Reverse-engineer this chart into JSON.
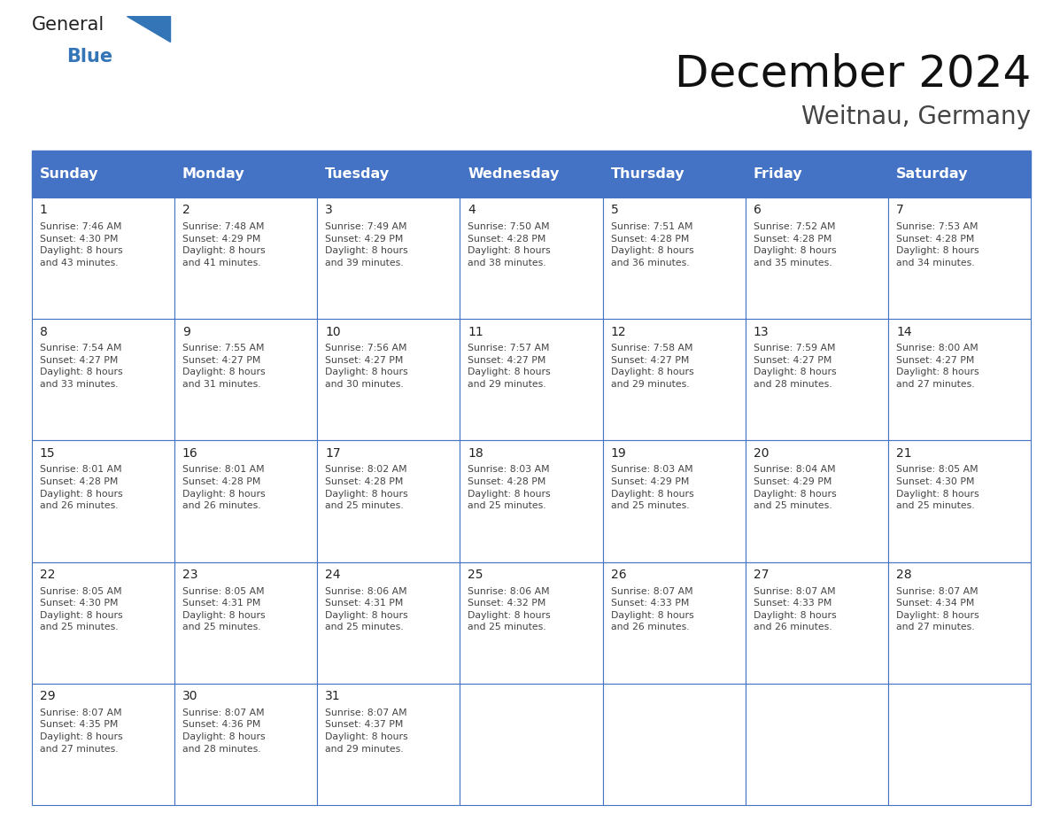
{
  "title": "December 2024",
  "subtitle": "Weitnau, Germany",
  "header_bg": "#4472C4",
  "header_text_color": "#FFFFFF",
  "cell_bg": "#FFFFFF",
  "cell_text_color": "#333333",
  "grid_color": "#4472C4",
  "days_of_week": [
    "Sunday",
    "Monday",
    "Tuesday",
    "Wednesday",
    "Thursday",
    "Friday",
    "Saturday"
  ],
  "logo_general_color": "#222222",
  "logo_blue_color": "#3375B7",
  "calendar_data": [
    [
      {
        "day": "1",
        "sunrise": "7:46 AM",
        "sunset": "4:30 PM",
        "daylight_line1": "8 hours",
        "daylight_line2": "and 43 minutes."
      },
      {
        "day": "2",
        "sunrise": "7:48 AM",
        "sunset": "4:29 PM",
        "daylight_line1": "8 hours",
        "daylight_line2": "and 41 minutes."
      },
      {
        "day": "3",
        "sunrise": "7:49 AM",
        "sunset": "4:29 PM",
        "daylight_line1": "8 hours",
        "daylight_line2": "and 39 minutes."
      },
      {
        "day": "4",
        "sunrise": "7:50 AM",
        "sunset": "4:28 PM",
        "daylight_line1": "8 hours",
        "daylight_line2": "and 38 minutes."
      },
      {
        "day": "5",
        "sunrise": "7:51 AM",
        "sunset": "4:28 PM",
        "daylight_line1": "8 hours",
        "daylight_line2": "and 36 minutes."
      },
      {
        "day": "6",
        "sunrise": "7:52 AM",
        "sunset": "4:28 PM",
        "daylight_line1": "8 hours",
        "daylight_line2": "and 35 minutes."
      },
      {
        "day": "7",
        "sunrise": "7:53 AM",
        "sunset": "4:28 PM",
        "daylight_line1": "8 hours",
        "daylight_line2": "and 34 minutes."
      }
    ],
    [
      {
        "day": "8",
        "sunrise": "7:54 AM",
        "sunset": "4:27 PM",
        "daylight_line1": "8 hours",
        "daylight_line2": "and 33 minutes."
      },
      {
        "day": "9",
        "sunrise": "7:55 AM",
        "sunset": "4:27 PM",
        "daylight_line1": "8 hours",
        "daylight_line2": "and 31 minutes."
      },
      {
        "day": "10",
        "sunrise": "7:56 AM",
        "sunset": "4:27 PM",
        "daylight_line1": "8 hours",
        "daylight_line2": "and 30 minutes."
      },
      {
        "day": "11",
        "sunrise": "7:57 AM",
        "sunset": "4:27 PM",
        "daylight_line1": "8 hours",
        "daylight_line2": "and 29 minutes."
      },
      {
        "day": "12",
        "sunrise": "7:58 AM",
        "sunset": "4:27 PM",
        "daylight_line1": "8 hours",
        "daylight_line2": "and 29 minutes."
      },
      {
        "day": "13",
        "sunrise": "7:59 AM",
        "sunset": "4:27 PM",
        "daylight_line1": "8 hours",
        "daylight_line2": "and 28 minutes."
      },
      {
        "day": "14",
        "sunrise": "8:00 AM",
        "sunset": "4:27 PM",
        "daylight_line1": "8 hours",
        "daylight_line2": "and 27 minutes."
      }
    ],
    [
      {
        "day": "15",
        "sunrise": "8:01 AM",
        "sunset": "4:28 PM",
        "daylight_line1": "8 hours",
        "daylight_line2": "and 26 minutes."
      },
      {
        "day": "16",
        "sunrise": "8:01 AM",
        "sunset": "4:28 PM",
        "daylight_line1": "8 hours",
        "daylight_line2": "and 26 minutes."
      },
      {
        "day": "17",
        "sunrise": "8:02 AM",
        "sunset": "4:28 PM",
        "daylight_line1": "8 hours",
        "daylight_line2": "and 25 minutes."
      },
      {
        "day": "18",
        "sunrise": "8:03 AM",
        "sunset": "4:28 PM",
        "daylight_line1": "8 hours",
        "daylight_line2": "and 25 minutes."
      },
      {
        "day": "19",
        "sunrise": "8:03 AM",
        "sunset": "4:29 PM",
        "daylight_line1": "8 hours",
        "daylight_line2": "and 25 minutes."
      },
      {
        "day": "20",
        "sunrise": "8:04 AM",
        "sunset": "4:29 PM",
        "daylight_line1": "8 hours",
        "daylight_line2": "and 25 minutes."
      },
      {
        "day": "21",
        "sunrise": "8:05 AM",
        "sunset": "4:30 PM",
        "daylight_line1": "8 hours",
        "daylight_line2": "and 25 minutes."
      }
    ],
    [
      {
        "day": "22",
        "sunrise": "8:05 AM",
        "sunset": "4:30 PM",
        "daylight_line1": "8 hours",
        "daylight_line2": "and 25 minutes."
      },
      {
        "day": "23",
        "sunrise": "8:05 AM",
        "sunset": "4:31 PM",
        "daylight_line1": "8 hours",
        "daylight_line2": "and 25 minutes."
      },
      {
        "day": "24",
        "sunrise": "8:06 AM",
        "sunset": "4:31 PM",
        "daylight_line1": "8 hours",
        "daylight_line2": "and 25 minutes."
      },
      {
        "day": "25",
        "sunrise": "8:06 AM",
        "sunset": "4:32 PM",
        "daylight_line1": "8 hours",
        "daylight_line2": "and 25 minutes."
      },
      {
        "day": "26",
        "sunrise": "8:07 AM",
        "sunset": "4:33 PM",
        "daylight_line1": "8 hours",
        "daylight_line2": "and 26 minutes."
      },
      {
        "day": "27",
        "sunrise": "8:07 AM",
        "sunset": "4:33 PM",
        "daylight_line1": "8 hours",
        "daylight_line2": "and 26 minutes."
      },
      {
        "day": "28",
        "sunrise": "8:07 AM",
        "sunset": "4:34 PM",
        "daylight_line1": "8 hours",
        "daylight_line2": "and 27 minutes."
      }
    ],
    [
      {
        "day": "29",
        "sunrise": "8:07 AM",
        "sunset": "4:35 PM",
        "daylight_line1": "8 hours",
        "daylight_line2": "and 27 minutes."
      },
      {
        "day": "30",
        "sunrise": "8:07 AM",
        "sunset": "4:36 PM",
        "daylight_line1": "8 hours",
        "daylight_line2": "and 28 minutes."
      },
      {
        "day": "31",
        "sunrise": "8:07 AM",
        "sunset": "4:37 PM",
        "daylight_line1": "8 hours",
        "daylight_line2": "and 29 minutes."
      },
      null,
      null,
      null,
      null
    ]
  ],
  "figsize": [
    11.88,
    9.18
  ],
  "dpi": 100
}
